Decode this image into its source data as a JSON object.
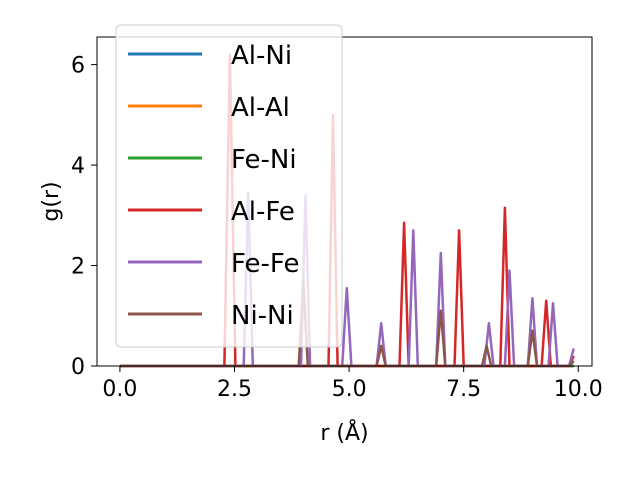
{
  "chart_data": {
    "type": "line",
    "xlabel": "r (Å)",
    "ylabel": "g(r)",
    "xlim": [
      -0.5,
      10.3
    ],
    "ylim": [
      0,
      6.55
    ],
    "xticks": [
      0.0,
      2.5,
      5.0,
      7.5,
      10.0
    ],
    "xtick_labels": [
      "0.0",
      "2.5",
      "5.0",
      "7.5",
      "10.0"
    ],
    "yticks": [
      0,
      2,
      4,
      6
    ],
    "ytick_labels": [
      "0",
      "2",
      "4",
      "6"
    ],
    "grid": false,
    "legend_position": "top-left",
    "series": [
      {
        "name": "Al-Ni",
        "color": "#1f77b4",
        "x": [
          0,
          9.9
        ],
        "y": [
          0,
          0
        ]
      },
      {
        "name": "Al-Al",
        "color": "#ff7f0e",
        "x": [
          0,
          9.9
        ],
        "y": [
          0,
          0
        ]
      },
      {
        "name": "Fe-Ni",
        "color": "#2ca02c",
        "x": [
          0,
          9.9
        ],
        "y": [
          0,
          0
        ]
      },
      {
        "name": "Al-Fe",
        "color": "#d62728",
        "x": [
          0,
          2.28,
          2.4,
          2.52,
          4.55,
          4.65,
          4.75,
          6.1,
          6.2,
          6.3,
          7.3,
          7.4,
          7.5,
          8.3,
          8.4,
          8.5,
          9.2,
          9.3,
          9.4,
          9.8,
          9.9
        ],
        "y": [
          0,
          0,
          6.2,
          0,
          0,
          5.0,
          0,
          0,
          2.85,
          0,
          0,
          2.7,
          0,
          0,
          3.15,
          0,
          0,
          1.3,
          0,
          0,
          0.2
        ]
      },
      {
        "name": "Fe-Fe",
        "color": "#9467bd",
        "x": [
          0,
          2.7,
          2.8,
          2.9,
          3.95,
          4.05,
          4.15,
          4.85,
          4.95,
          5.05,
          5.6,
          5.7,
          5.8,
          6.3,
          6.4,
          6.5,
          6.9,
          7.0,
          7.1,
          7.95,
          8.05,
          8.15,
          8.4,
          8.5,
          8.6,
          8.9,
          9.0,
          9.1,
          9.35,
          9.45,
          9.55,
          9.8,
          9.9
        ],
        "y": [
          0,
          0,
          3.45,
          0,
          0,
          3.4,
          0,
          0,
          1.55,
          0,
          0,
          0.85,
          0,
          0,
          2.7,
          0,
          0,
          2.25,
          0,
          0,
          0.85,
          0,
          0,
          1.9,
          0,
          0,
          1.35,
          0,
          0,
          1.25,
          0,
          0,
          0.35
        ]
      },
      {
        "name": "Ni-Ni",
        "color": "#8c564b",
        "x": [
          0,
          3.9,
          4.0,
          4.1,
          5.6,
          5.7,
          5.8,
          6.9,
          7.0,
          7.1,
          7.9,
          8.0,
          8.1,
          8.9,
          9.0,
          9.1,
          9.8,
          9.9
        ],
        "y": [
          0,
          0,
          1.7,
          0,
          0,
          0.4,
          0,
          0,
          1.1,
          0,
          0,
          0.4,
          0,
          0,
          0.7,
          0,
          0,
          0.1
        ]
      }
    ]
  }
}
